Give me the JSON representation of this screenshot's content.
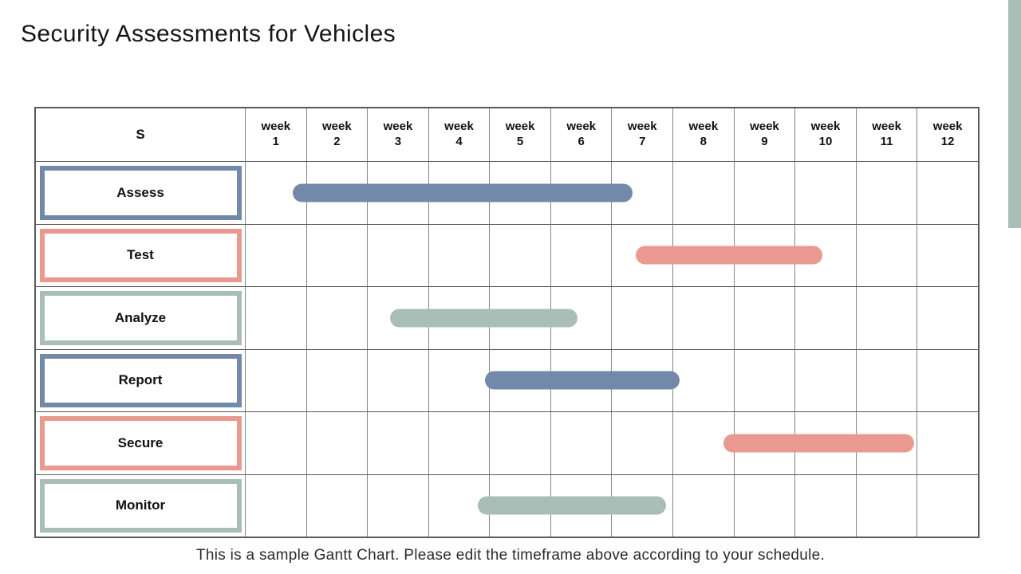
{
  "title": "Security Assessments for Vehicles",
  "footer": {
    "text": "This is a sample Gantt Chart. Please edit the timeframe above according to your schedule."
  },
  "colors": {
    "blue": "#7389aa",
    "salmon": "#e9998f",
    "sage": "#a9beb6",
    "accent_stripe": "#a9beb6"
  },
  "chart_data": {
    "type": "gantt",
    "title": "Security Assessments for Vehicles",
    "corner_header": "S",
    "weeks": [
      "week 1",
      "week 2",
      "week 3",
      "week 4",
      "week 5",
      "week 6",
      "week 7",
      "week 8",
      "week 9",
      "week 10",
      "week 11",
      "week 12"
    ],
    "axis_range_weeks": [
      0,
      12
    ],
    "grid": true,
    "tasks": [
      {
        "name": "Assess",
        "color_key": "blue",
        "start_week": 0.78,
        "end_week": 6.35
      },
      {
        "name": "Test",
        "color_key": "salmon",
        "start_week": 6.4,
        "end_week": 9.45
      },
      {
        "name": "Analyze",
        "color_key": "sage",
        "start_week": 2.38,
        "end_week": 5.45
      },
      {
        "name": "Report",
        "color_key": "blue",
        "start_week": 3.93,
        "end_week": 7.12
      },
      {
        "name": "Secure",
        "color_key": "salmon",
        "start_week": 7.84,
        "end_week": 10.95
      },
      {
        "name": "Monitor",
        "color_key": "sage",
        "start_week": 3.81,
        "end_week": 6.89
      }
    ]
  }
}
